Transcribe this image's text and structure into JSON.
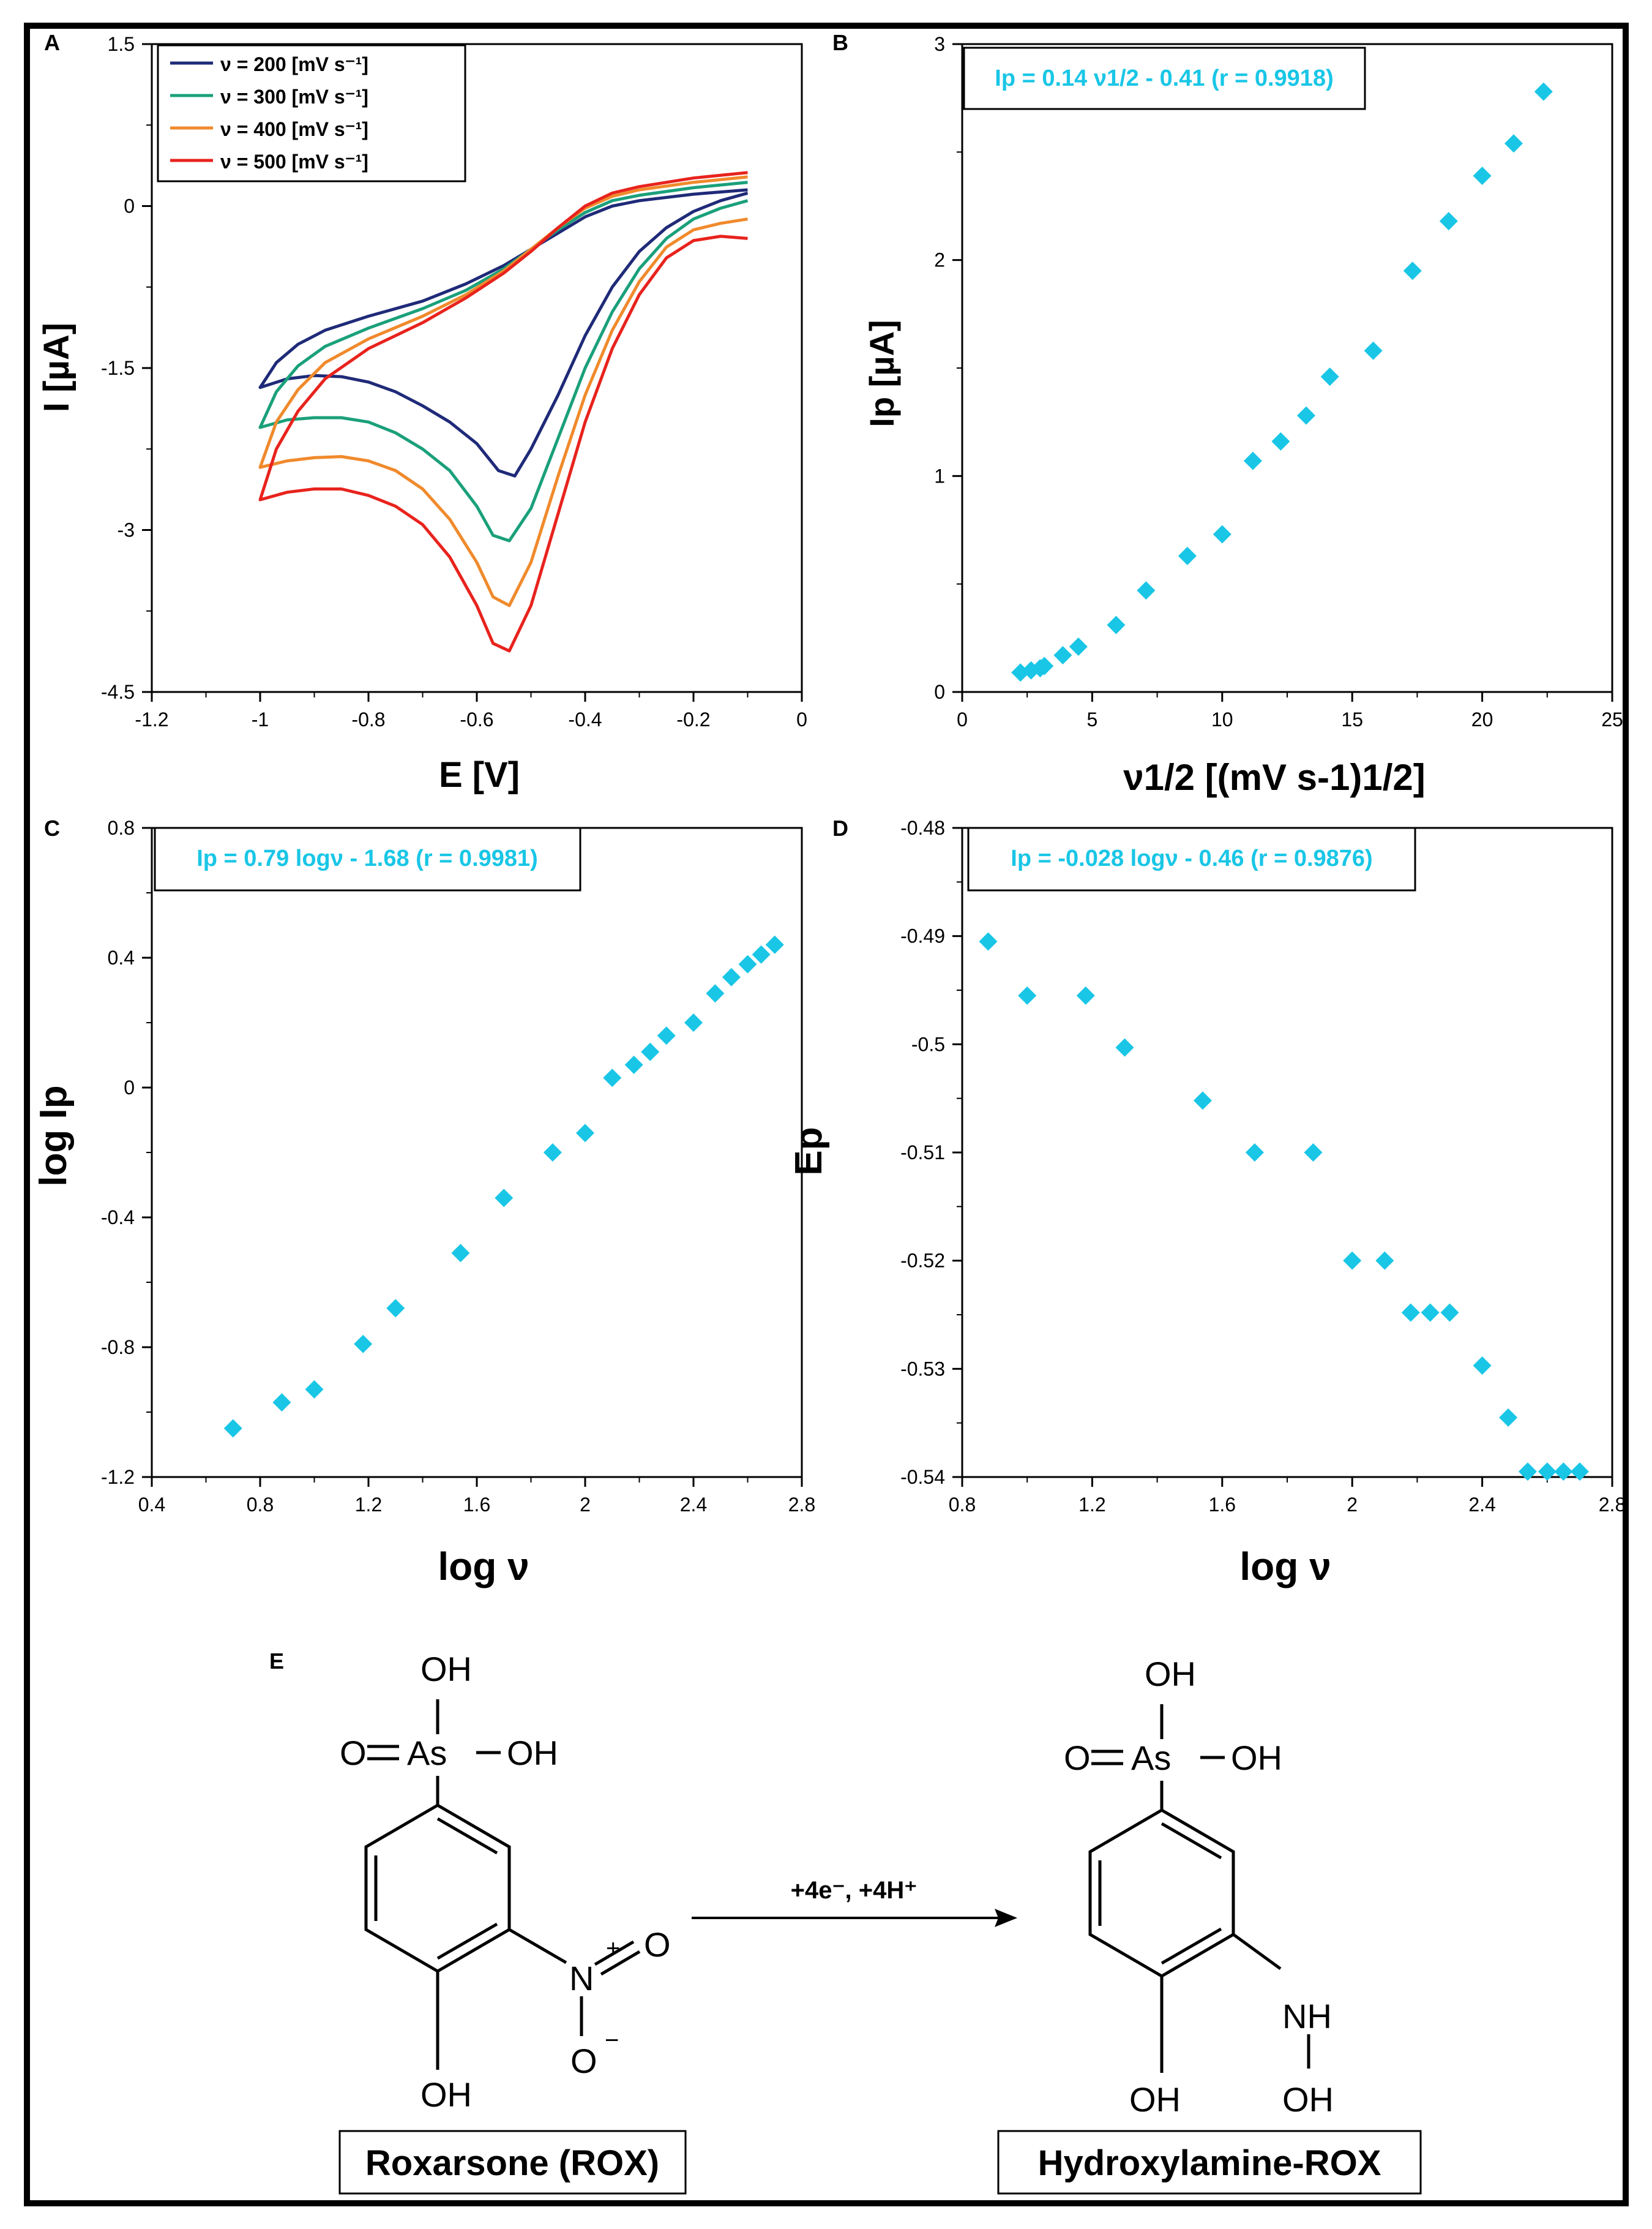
{
  "colors": {
    "frame": "#000000",
    "marker": "#19c6e6",
    "eq_text": "#19c6e6",
    "cv_200": "#1f2a78",
    "cv_300": "#1aa07a",
    "cv_400": "#f08a2c",
    "cv_500": "#e8231d"
  },
  "chart_data": [
    {
      "id": "A",
      "type": "line",
      "panel_label": "A",
      "xlabel": "E [V]",
      "ylabel": "I [µA]",
      "xlim": [
        -1.2,
        0
      ],
      "ylim": [
        -4.5,
        1.5
      ],
      "xticks": [
        "-1.2",
        "-1",
        "-0.8",
        "-0.6",
        "-0.4",
        "-0.2",
        "0"
      ],
      "yticks": [
        "1.5",
        "0",
        "-1.5",
        "-3",
        "-4.5"
      ],
      "legend_position": "top-left",
      "series": [
        {
          "name": "ν = 200 [mV s-1]",
          "legend_label": "ν = 200 [mV s⁻¹]",
          "color": "#1f2a78",
          "cathodic": [
            [
              -0.1,
              0.12
            ],
            [
              -0.15,
              0.05
            ],
            [
              -0.2,
              -0.05
            ],
            [
              -0.25,
              -0.2
            ],
            [
              -0.3,
              -0.42
            ],
            [
              -0.35,
              -0.75
            ],
            [
              -0.4,
              -1.2
            ],
            [
              -0.45,
              -1.75
            ],
            [
              -0.5,
              -2.25
            ],
            [
              -0.53,
              -2.5
            ],
            [
              -0.56,
              -2.45
            ],
            [
              -0.6,
              -2.2
            ],
            [
              -0.65,
              -2.0
            ],
            [
              -0.7,
              -1.85
            ],
            [
              -0.75,
              -1.72
            ],
            [
              -0.8,
              -1.63
            ],
            [
              -0.85,
              -1.58
            ],
            [
              -0.9,
              -1.57
            ],
            [
              -0.95,
              -1.6
            ],
            [
              -1.0,
              -1.68
            ]
          ],
          "anodic": [
            [
              -1.0,
              -1.68
            ],
            [
              -0.97,
              -1.45
            ],
            [
              -0.93,
              -1.28
            ],
            [
              -0.88,
              -1.15
            ],
            [
              -0.8,
              -1.02
            ],
            [
              -0.7,
              -0.88
            ],
            [
              -0.62,
              -0.72
            ],
            [
              -0.55,
              -0.55
            ],
            [
              -0.5,
              -0.4
            ],
            [
              -0.45,
              -0.25
            ],
            [
              -0.4,
              -0.1
            ],
            [
              -0.35,
              0.0
            ],
            [
              -0.3,
              0.05
            ],
            [
              -0.2,
              0.11
            ],
            [
              -0.1,
              0.15
            ]
          ]
        },
        {
          "name": "ν = 300 [mV s-1]",
          "legend_label": "ν = 300 [mV s⁻¹]",
          "color": "#1aa07a",
          "cathodic": [
            [
              -0.1,
              0.05
            ],
            [
              -0.15,
              -0.02
            ],
            [
              -0.2,
              -0.12
            ],
            [
              -0.25,
              -0.3
            ],
            [
              -0.3,
              -0.58
            ],
            [
              -0.35,
              -0.98
            ],
            [
              -0.4,
              -1.5
            ],
            [
              -0.45,
              -2.15
            ],
            [
              -0.5,
              -2.8
            ],
            [
              -0.54,
              -3.1
            ],
            [
              -0.57,
              -3.05
            ],
            [
              -0.6,
              -2.78
            ],
            [
              -0.65,
              -2.45
            ],
            [
              -0.7,
              -2.25
            ],
            [
              -0.75,
              -2.1
            ],
            [
              -0.8,
              -2.0
            ],
            [
              -0.85,
              -1.96
            ],
            [
              -0.9,
              -1.96
            ],
            [
              -0.95,
              -1.98
            ],
            [
              -1.0,
              -2.05
            ]
          ],
          "anodic": [
            [
              -1.0,
              -2.05
            ],
            [
              -0.97,
              -1.72
            ],
            [
              -0.93,
              -1.48
            ],
            [
              -0.88,
              -1.3
            ],
            [
              -0.8,
              -1.13
            ],
            [
              -0.7,
              -0.95
            ],
            [
              -0.62,
              -0.78
            ],
            [
              -0.55,
              -0.58
            ],
            [
              -0.5,
              -0.4
            ],
            [
              -0.45,
              -0.22
            ],
            [
              -0.4,
              -0.06
            ],
            [
              -0.35,
              0.05
            ],
            [
              -0.3,
              0.1
            ],
            [
              -0.2,
              0.17
            ],
            [
              -0.1,
              0.22
            ]
          ]
        },
        {
          "name": "ν = 400 [mV s-1]",
          "legend_label": "ν = 400 [mV s⁻¹]",
          "color": "#f08a2c",
          "cathodic": [
            [
              -0.1,
              -0.12
            ],
            [
              -0.15,
              -0.16
            ],
            [
              -0.2,
              -0.22
            ],
            [
              -0.25,
              -0.38
            ],
            [
              -0.3,
              -0.7
            ],
            [
              -0.35,
              -1.15
            ],
            [
              -0.4,
              -1.75
            ],
            [
              -0.45,
              -2.5
            ],
            [
              -0.5,
              -3.3
            ],
            [
              -0.54,
              -3.7
            ],
            [
              -0.57,
              -3.62
            ],
            [
              -0.6,
              -3.3
            ],
            [
              -0.65,
              -2.9
            ],
            [
              -0.7,
              -2.62
            ],
            [
              -0.75,
              -2.45
            ],
            [
              -0.8,
              -2.36
            ],
            [
              -0.85,
              -2.32
            ],
            [
              -0.9,
              -2.33
            ],
            [
              -0.95,
              -2.36
            ],
            [
              -1.0,
              -2.42
            ]
          ],
          "anodic": [
            [
              -1.0,
              -2.42
            ],
            [
              -0.97,
              -2.0
            ],
            [
              -0.93,
              -1.7
            ],
            [
              -0.88,
              -1.45
            ],
            [
              -0.8,
              -1.23
            ],
            [
              -0.7,
              -1.02
            ],
            [
              -0.62,
              -0.82
            ],
            [
              -0.55,
              -0.6
            ],
            [
              -0.5,
              -0.4
            ],
            [
              -0.45,
              -0.2
            ],
            [
              -0.4,
              -0.02
            ],
            [
              -0.35,
              0.09
            ],
            [
              -0.3,
              0.15
            ],
            [
              -0.2,
              0.22
            ],
            [
              -0.1,
              0.27
            ]
          ]
        },
        {
          "name": "ν = 500 [mV s-1]",
          "legend_label": "ν = 500 [mV s⁻¹]",
          "color": "#e8231d",
          "cathodic": [
            [
              -0.1,
              -0.3
            ],
            [
              -0.15,
              -0.28
            ],
            [
              -0.2,
              -0.32
            ],
            [
              -0.25,
              -0.48
            ],
            [
              -0.3,
              -0.82
            ],
            [
              -0.35,
              -1.32
            ],
            [
              -0.4,
              -2.0
            ],
            [
              -0.45,
              -2.85
            ],
            [
              -0.5,
              -3.7
            ],
            [
              -0.54,
              -4.12
            ],
            [
              -0.57,
              -4.05
            ],
            [
              -0.6,
              -3.7
            ],
            [
              -0.65,
              -3.25
            ],
            [
              -0.7,
              -2.95
            ],
            [
              -0.75,
              -2.78
            ],
            [
              -0.8,
              -2.68
            ],
            [
              -0.85,
              -2.62
            ],
            [
              -0.9,
              -2.62
            ],
            [
              -0.95,
              -2.65
            ],
            [
              -1.0,
              -2.72
            ]
          ],
          "anodic": [
            [
              -1.0,
              -2.72
            ],
            [
              -0.97,
              -2.25
            ],
            [
              -0.93,
              -1.9
            ],
            [
              -0.88,
              -1.6
            ],
            [
              -0.8,
              -1.32
            ],
            [
              -0.7,
              -1.08
            ],
            [
              -0.62,
              -0.85
            ],
            [
              -0.55,
              -0.62
            ],
            [
              -0.5,
              -0.42
            ],
            [
              -0.45,
              -0.2
            ],
            [
              -0.4,
              0.0
            ],
            [
              -0.35,
              0.12
            ],
            [
              -0.3,
              0.18
            ],
            [
              -0.2,
              0.26
            ],
            [
              -0.1,
              0.31
            ]
          ]
        }
      ]
    },
    {
      "id": "B",
      "type": "scatter",
      "panel_label": "B",
      "xlabel": "ν1/2 [(mV s-1)1/2]",
      "ylabel": "Ip [µA]",
      "equation": "Ip = 0.14 ν1/2 - 0.41 (r = 0.9918)",
      "xlim": [
        0,
        25
      ],
      "ylim": [
        0,
        3
      ],
      "xticks": [
        "0",
        "5",
        "10",
        "15",
        "20",
        "25"
      ],
      "yticks": [
        "0",
        "1",
        "2",
        "3"
      ],
      "x": [
        2.24,
        2.65,
        3.0,
        3.16,
        3.87,
        4.47,
        5.92,
        7.07,
        8.66,
        10.0,
        11.18,
        12.25,
        13.23,
        14.14,
        15.81,
        17.32,
        18.71,
        20.0,
        21.21,
        22.36
      ],
      "y": [
        0.09,
        0.1,
        0.11,
        0.12,
        0.17,
        0.21,
        0.31,
        0.47,
        0.63,
        0.73,
        1.07,
        1.16,
        1.28,
        1.46,
        1.58,
        1.95,
        2.18,
        2.39,
        2.54,
        2.78
      ]
    },
    {
      "id": "C",
      "type": "scatter",
      "panel_label": "C",
      "xlabel": "log ν",
      "ylabel": "log Ip",
      "equation": "Ip = 0.79 logν - 1.68 (r = 0.9981)",
      "xlim": [
        0.4,
        2.8
      ],
      "ylim": [
        -1.2,
        0.8
      ],
      "xticks": [
        "0.4",
        "0.8",
        "1.2",
        "1.6",
        "2",
        "2.4",
        "2.8"
      ],
      "yticks": [
        "0.8",
        "0.4",
        "0",
        "-0.4",
        "-0.8",
        "-1.2"
      ],
      "x": [
        0.7,
        0.88,
        1.0,
        1.18,
        1.3,
        1.54,
        1.7,
        1.88,
        2.0,
        2.1,
        2.18,
        2.24,
        2.3,
        2.4,
        2.48,
        2.54,
        2.6,
        2.65,
        2.7
      ],
      "y": [
        -1.05,
        -0.97,
        -0.93,
        -0.79,
        -0.68,
        -0.51,
        -0.34,
        -0.2,
        -0.14,
        0.03,
        0.07,
        0.11,
        0.16,
        0.2,
        0.29,
        0.34,
        0.38,
        0.41,
        0.44
      ]
    },
    {
      "id": "D",
      "type": "scatter",
      "panel_label": "D",
      "xlabel": "log ν",
      "ylabel": "Ep",
      "equation": "Ip = -0.028 logν - 0.46 (r = 0.9876)",
      "xlim": [
        0.8,
        2.8
      ],
      "ylim": [
        -0.54,
        -0.48
      ],
      "xticks": [
        "0.8",
        "1.2",
        "1.6",
        "2",
        "2.4",
        "2.8"
      ],
      "yticks": [
        "-0.48",
        "-0.49",
        "-0.5",
        "-0.51",
        "-0.52",
        "-0.53",
        "-0.54"
      ],
      "x": [
        0.88,
        1.0,
        1.18,
        1.3,
        1.54,
        1.7,
        1.88,
        2.0,
        2.1,
        2.18,
        2.24,
        2.3,
        2.4,
        2.48,
        2.54,
        2.6,
        2.65,
        2.7
      ],
      "y": [
        -0.4905,
        -0.4955,
        -0.4955,
        -0.5003,
        -0.5052,
        -0.51,
        -0.51,
        -0.52,
        -0.52,
        -0.5248,
        -0.5248,
        -0.5248,
        -0.5297,
        -0.5345,
        -0.5395,
        -0.5395,
        -0.5395,
        -0.5395
      ]
    }
  ],
  "scheme": {
    "panel_label": "E",
    "reactant_name": "Roxarsone (ROX)",
    "product_name": "Hydroxylamine-ROX",
    "arrow_label": "+4e⁻, +4H⁺",
    "atoms": {
      "oh": "OH",
      "o": "O",
      "as": "As",
      "n": "N",
      "nh": "NH",
      "plus": "+",
      "minus": "−"
    }
  }
}
